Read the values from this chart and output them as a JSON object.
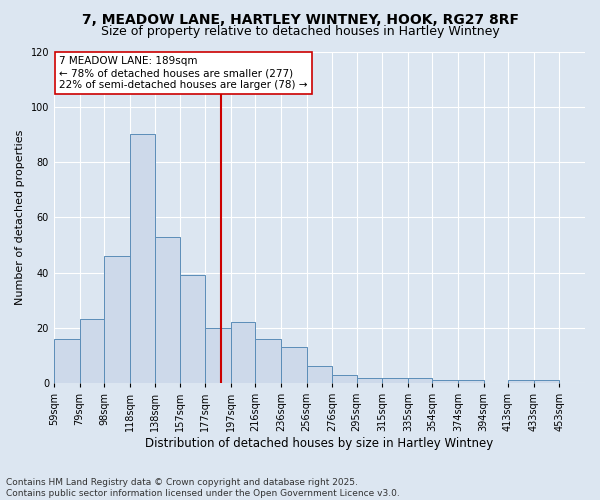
{
  "title": "7, MEADOW LANE, HARTLEY WINTNEY, HOOK, RG27 8RF",
  "subtitle": "Size of property relative to detached houses in Hartley Wintney",
  "xlabel": "Distribution of detached houses by size in Hartley Wintney",
  "ylabel": "Number of detached properties",
  "bin_labels": [
    "59sqm",
    "79sqm",
    "98sqm",
    "118sqm",
    "138sqm",
    "157sqm",
    "177sqm",
    "197sqm",
    "216sqm",
    "236sqm",
    "256sqm",
    "276sqm",
    "295sqm",
    "315sqm",
    "335sqm",
    "354sqm",
    "374sqm",
    "394sqm",
    "413sqm",
    "433sqm",
    "453sqm"
  ],
  "bin_edges": [
    59,
    79,
    98,
    118,
    138,
    157,
    177,
    197,
    216,
    236,
    256,
    276,
    295,
    315,
    335,
    354,
    374,
    394,
    413,
    433,
    453
  ],
  "bar_heights": [
    16,
    23,
    46,
    90,
    53,
    39,
    20,
    22,
    16,
    13,
    6,
    3,
    2,
    2,
    2,
    1,
    1,
    0,
    1,
    1
  ],
  "bar_color": "#cdd9ea",
  "bar_edge_color": "#5b8db8",
  "bg_color": "#dce6f1",
  "plot_bg_color": "#dce6f1",
  "vline_x": 189,
  "vline_color": "#cc0000",
  "annotation_text": "7 MEADOW LANE: 189sqm\n← 78% of detached houses are smaller (277)\n22% of semi-detached houses are larger (78) →",
  "annotation_box_facecolor": "#ffffff",
  "annotation_box_edgecolor": "#cc0000",
  "ylim": [
    0,
    120
  ],
  "yticks": [
    0,
    20,
    40,
    60,
    80,
    100,
    120
  ],
  "footer_text": "Contains HM Land Registry data © Crown copyright and database right 2025.\nContains public sector information licensed under the Open Government Licence v3.0.",
  "title_fontsize": 10,
  "subtitle_fontsize": 9,
  "xlabel_fontsize": 8.5,
  "ylabel_fontsize": 8,
  "tick_fontsize": 7,
  "annotation_fontsize": 7.5,
  "footer_fontsize": 6.5
}
